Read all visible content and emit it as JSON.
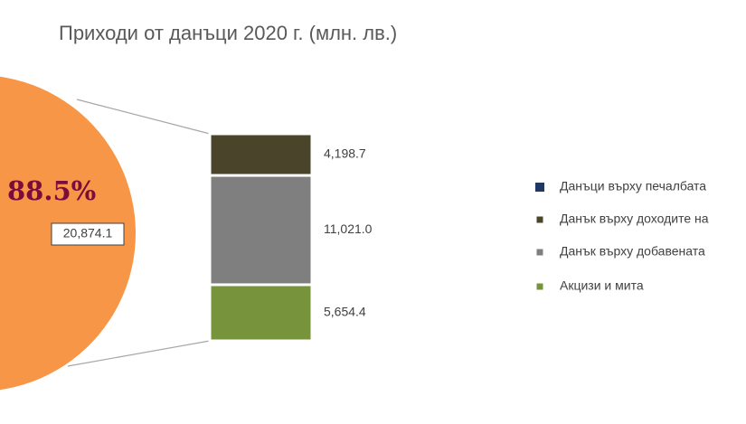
{
  "chart_data": {
    "type": "pie-of-bar",
    "title": "Приходи от данъци 2020 г. (млн. лв.)",
    "pie": {
      "values": [
        20874.1
      ],
      "value_labels": [
        "20,874.1"
      ],
      "percents": [
        88.5
      ],
      "percent_labels": [
        "88.5%"
      ],
      "color": "#f79646"
    },
    "bar": {
      "values": [
        4198.7,
        11021.0,
        5654.4
      ],
      "value_labels": [
        "4,198.7",
        "11,021.0",
        "5,654.4"
      ],
      "colors": [
        "#4a452a",
        "#7f7f7f",
        "#77933c"
      ]
    },
    "legend": [
      {
        "name": "Данъци върху печалбата",
        "color": "#1f3864"
      },
      {
        "name": "Данък върху доходите на",
        "color": "#4a452a"
      },
      {
        "name": "Данък върху добавената",
        "color": "#7f7f7f"
      },
      {
        "name": "Акцизи и мита",
        "color": "#77933c"
      }
    ]
  }
}
